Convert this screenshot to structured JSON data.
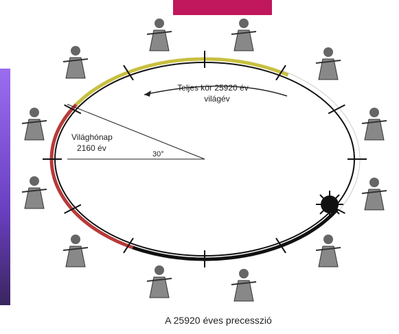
{
  "diagram": {
    "arrow_label": {
      "line1": "Teljes kör 25920 év",
      "line2": "világév"
    },
    "sector_label": {
      "line1": "Világhónap",
      "line2": "2160 év"
    },
    "angle_label": "30°",
    "caption": "A 25920 éves precesszió"
  }
}
